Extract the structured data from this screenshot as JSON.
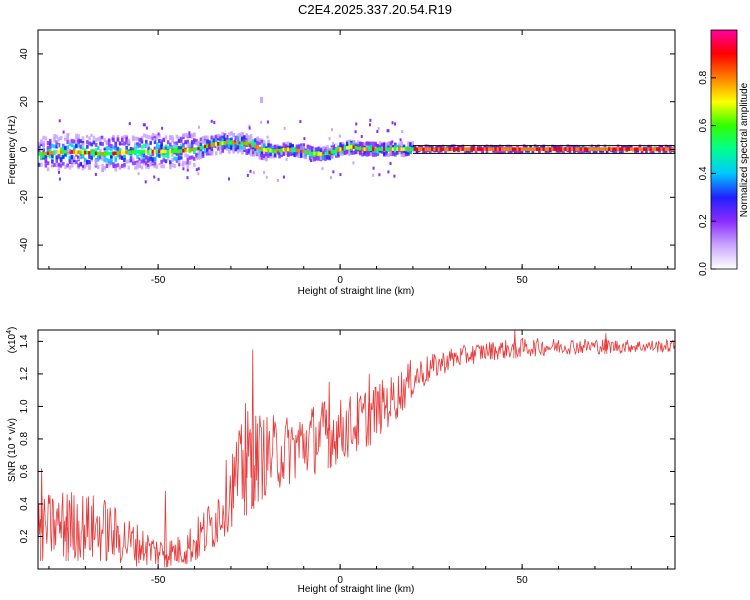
{
  "title": "C2E4.2025.337.20.54.R19",
  "chart_data": [
    {
      "type": "heatmap",
      "name": "spectrogram",
      "xlabel": "Height of straight line (km)",
      "ylabel": "Frequency (Hz)",
      "xlim": [
        -83,
        92
      ],
      "ylim": [
        -50,
        50
      ],
      "xticks": [
        -50,
        0,
        50
      ],
      "xtick_labels": [
        "-50",
        "0",
        "50"
      ],
      "yticks": [
        -40,
        -20,
        0,
        20,
        40
      ],
      "ytick_labels": [
        "-40",
        "-20",
        "0",
        "20",
        "40"
      ],
      "colorbar": {
        "label": "Normalized spectral amplitude",
        "range": [
          0,
          1
        ],
        "ticks": [
          0.0,
          0.2,
          0.4,
          0.6,
          0.8
        ],
        "tick_labels": [
          "0.0",
          "0.2",
          "0.4",
          "0.6",
          "0.8"
        ],
        "colors": [
          "#ffffff",
          "#c9a6ff",
          "#8a2cff",
          "#2020ff",
          "#00c8ff",
          "#00ff90",
          "#30ff00",
          "#ffff00",
          "#ff7f00",
          "#ff0000",
          "#ff00a0"
        ]
      },
      "centerline": [
        {
          "x": -83,
          "f": -2
        },
        {
          "x": -75,
          "f": -1
        },
        {
          "x": -65,
          "f": -2
        },
        {
          "x": -55,
          "f": -1
        },
        {
          "x": -45,
          "f": -1
        },
        {
          "x": -40,
          "f": 0
        },
        {
          "x": -35,
          "f": 2
        },
        {
          "x": -30,
          "f": 3
        },
        {
          "x": -25,
          "f": 2
        },
        {
          "x": -22,
          "f": 0
        },
        {
          "x": -18,
          "f": -1
        },
        {
          "x": -15,
          "f": 0
        },
        {
          "x": -10,
          "f": -1
        },
        {
          "x": -8,
          "f": -2
        },
        {
          "x": -5,
          "f": -2
        },
        {
          "x": -2,
          "f": -1
        },
        {
          "x": 0,
          "f": 0
        },
        {
          "x": 3,
          "f": 1
        },
        {
          "x": 6,
          "f": 0
        },
        {
          "x": 10,
          "f": 0
        },
        {
          "x": 15,
          "f": 0
        },
        {
          "x": 20,
          "f": 0
        },
        {
          "x": 92,
          "f": 0
        }
      ]
    },
    {
      "type": "line",
      "name": "snr",
      "xlabel": "Height of straight line (km)",
      "ylabel": "SNR (10 * v/v)",
      "multiplier_label": "(x10",
      "multiplier_exp": "4",
      "xlim": [
        -83,
        92
      ],
      "ylim": [
        0,
        1.47
      ],
      "xticks": [
        -50,
        0,
        50
      ],
      "xtick_labels": [
        "-50",
        "0",
        "50"
      ],
      "yticks": [
        0.2,
        0.4,
        0.6,
        0.8,
        1.0,
        1.2,
        1.4
      ],
      "ytick_labels": [
        "0.2",
        "0.4",
        "0.6",
        "0.8",
        "1.0",
        "1.2",
        "1.4"
      ],
      "color": "#e83a3a",
      "envelope": [
        {
          "x": -83,
          "lo": 0.05,
          "hi": 0.45
        },
        {
          "x": -75,
          "lo": 0.05,
          "hi": 0.5
        },
        {
          "x": -65,
          "lo": 0.03,
          "hi": 0.45
        },
        {
          "x": -60,
          "lo": 0.02,
          "hi": 0.35
        },
        {
          "x": -50,
          "lo": 0.01,
          "hi": 0.2
        },
        {
          "x": -45,
          "lo": 0.01,
          "hi": 0.2
        },
        {
          "x": -40,
          "lo": 0.02,
          "hi": 0.3
        },
        {
          "x": -35,
          "lo": 0.1,
          "hi": 0.45
        },
        {
          "x": -30,
          "lo": 0.25,
          "hi": 0.75
        },
        {
          "x": -25,
          "lo": 0.35,
          "hi": 1.0
        },
        {
          "x": -20,
          "lo": 0.45,
          "hi": 0.95
        },
        {
          "x": -15,
          "lo": 0.5,
          "hi": 0.95
        },
        {
          "x": -10,
          "lo": 0.55,
          "hi": 1.0
        },
        {
          "x": -5,
          "lo": 0.6,
          "hi": 1.05
        },
        {
          "x": 0,
          "lo": 0.65,
          "hi": 1.05
        },
        {
          "x": 5,
          "lo": 0.7,
          "hi": 1.1
        },
        {
          "x": 10,
          "lo": 0.8,
          "hi": 1.15
        },
        {
          "x": 15,
          "lo": 0.9,
          "hi": 1.2
        },
        {
          "x": 20,
          "lo": 1.05,
          "hi": 1.3
        },
        {
          "x": 25,
          "lo": 1.15,
          "hi": 1.32
        },
        {
          "x": 30,
          "lo": 1.22,
          "hi": 1.36
        },
        {
          "x": 40,
          "lo": 1.28,
          "hi": 1.4
        },
        {
          "x": 50,
          "lo": 1.3,
          "hi": 1.42
        },
        {
          "x": 60,
          "lo": 1.32,
          "hi": 1.42
        },
        {
          "x": 70,
          "lo": 1.32,
          "hi": 1.42
        },
        {
          "x": 80,
          "lo": 1.33,
          "hi": 1.41
        },
        {
          "x": 92,
          "lo": 1.33,
          "hi": 1.41
        }
      ],
      "spikes": [
        {
          "x": -82,
          "y": 0.62
        },
        {
          "x": -75,
          "y": 0.46
        },
        {
          "x": -48,
          "y": 0.48
        },
        {
          "x": -24,
          "y": 1.35
        },
        {
          "x": -26,
          "y": 1.02
        },
        {
          "x": -3,
          "y": 1.15
        },
        {
          "x": 8,
          "y": 1.2
        },
        {
          "x": 48,
          "y": 1.47
        },
        {
          "x": 73,
          "y": 1.45
        }
      ]
    }
  ]
}
